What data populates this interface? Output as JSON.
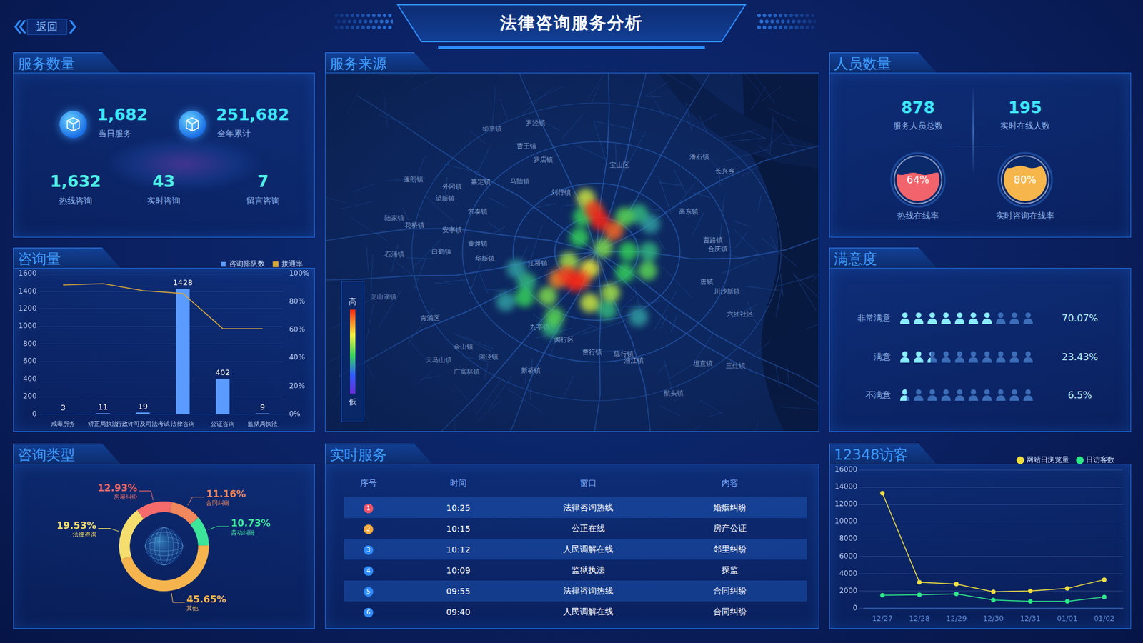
{
  "header": {
    "title": "法律咨询服务分析",
    "back": "返回"
  },
  "service_count": {
    "title": "服务数量",
    "headline": [
      {
        "value": "1,682",
        "label": "当日服务"
      },
      {
        "value": "251,682",
        "label": "全年累计"
      }
    ],
    "breakdown": [
      {
        "value": "1,632",
        "label": "热线咨询"
      },
      {
        "value": "43",
        "label": "实时咨询"
      },
      {
        "value": "7",
        "label": "留言咨询"
      }
    ]
  },
  "personnel": {
    "title": "人员数量",
    "stats": [
      {
        "value": "878",
        "label": "服务人员总数"
      },
      {
        "value": "195",
        "label": "实时在线人数"
      }
    ],
    "ylim": [
      0,
      100
    ],
    "rates": [
      {
        "label": "热线在线率",
        "value": 64,
        "value_label": "64%",
        "color": "#f2646c"
      },
      {
        "label": "实时咨询在线率",
        "value": 80,
        "value_label": "80%",
        "color": "#f6b64c"
      }
    ]
  },
  "satisfaction": {
    "title": "满意度",
    "xlim": [
      0,
      100
    ],
    "rows": [
      {
        "label": "非常满意",
        "value": 70.07,
        "value_label": "70.07%"
      },
      {
        "label": "满意",
        "value": 23.43,
        "value_label": "23.43%"
      },
      {
        "label": "不满意",
        "value": 6.5,
        "value_label": "6.5%"
      }
    ]
  },
  "realtime_service": {
    "title": "实时服务",
    "columns": [
      "序号",
      "时间",
      "窗口",
      "内容"
    ],
    "rows": [
      [
        "1",
        "10:25",
        "法律咨询热线",
        "婚姻纠纷"
      ],
      [
        "2",
        "10:15",
        "公正在线",
        "房产公证"
      ],
      [
        "3",
        "10:12",
        "人民调解在线",
        "邻里纠纷"
      ],
      [
        "4",
        "10:09",
        "监狱执法",
        "探监"
      ],
      [
        "5",
        "09:55",
        "法律咨询热线",
        "合同纠纷"
      ],
      [
        "6",
        "09:40",
        "人民调解在线",
        "合同纠纷"
      ]
    ]
  },
  "chart_data": [
    {
      "type": "bar",
      "title": "咨询量",
      "categories": [
        "戒毒所务",
        "矫正局执法",
        "行政许可及司法考试",
        "法律咨询",
        "公证咨询",
        "监狱局执法"
      ],
      "series": [
        {
          "name": "咨询排队数",
          "type": "bar",
          "color": "#5b9bff",
          "values": [
            3,
            11,
            19,
            1428,
            402,
            9
          ],
          "data_labels": true
        },
        {
          "name": "接通率",
          "type": "line",
          "color": "#d9a93a",
          "axis": "y2",
          "line_style": "solid",
          "values": [
            92,
            93,
            88,
            86,
            61,
            61
          ]
        }
      ],
      "ylim": [
        0,
        1600
      ],
      "yticks": [
        0,
        200,
        400,
        600,
        800,
        1000,
        1200,
        1400,
        1600
      ],
      "y2lim": [
        0,
        100
      ],
      "y2ticks": [
        {
          "value": 0,
          "label": "0%"
        },
        {
          "value": 20,
          "label": "20%"
        },
        {
          "value": 40,
          "label": "40%"
        },
        {
          "value": 60,
          "label": "60%"
        },
        {
          "value": 80,
          "label": "80%"
        },
        {
          "value": 100,
          "label": "100%"
        }
      ],
      "grid": true,
      "legend": "top-right"
    },
    {
      "type": "doughnut",
      "title": "咨询类型",
      "categories": [
        "合同纠纷",
        "劳动纠纷",
        "其他",
        "法律咨询",
        "房屋纠纷"
      ],
      "values": [
        11.16,
        10.73,
        45.65,
        19.53,
        12.93
      ],
      "value_labels": [
        "11.16%",
        "10.73%",
        "45.65%",
        "19.53%",
        "12.93%"
      ],
      "colors": [
        "#f0875d",
        "#3de59a",
        "#f6b44e",
        "#f5de6d",
        "#f46b6b"
      ],
      "data_labels": true
    },
    {
      "type": "line",
      "title": "12348访客",
      "categories": [
        "12/27",
        "12/28",
        "12/29",
        "12/30",
        "12/31",
        "01/01",
        "01/02"
      ],
      "series": [
        {
          "name": "网站日浏览量",
          "color": "#f0e040",
          "marker": "circle",
          "line_style": "solid",
          "values": [
            13300,
            3000,
            2800,
            1900,
            2000,
            2300,
            3300
          ]
        },
        {
          "name": "日访客数",
          "color": "#2ee88a",
          "marker": "circle",
          "line_style": "solid",
          "values": [
            1500,
            1550,
            1650,
            950,
            800,
            800,
            1300
          ]
        }
      ],
      "ylim": [
        0,
        16000
      ],
      "yticks": [
        0,
        2000,
        4000,
        6000,
        8000,
        10000,
        12000,
        14000,
        16000
      ],
      "grid": true,
      "legend": "top-right"
    },
    {
      "type": "heatmap",
      "title": "服务来源",
      "x": [
        66.5,
        38.2,
        36.0,
        64.0,
        64.0,
        66.2,
        40.4,
        45.6,
        57.4,
        52.2,
        51.5,
        61.8,
        61.1,
        40.0,
        61.1,
        65.9,
        46.3,
        56.6,
        44.8,
        58.1,
        49.3,
        52.9,
        53.7,
        53.7,
        47.1,
        58.8,
        52.0,
        54.6,
        49.0,
        55.9,
        50.7
      ],
      "y": [
        41.7,
        54.9,
        64.6,
        69.1,
        38.6,
        49.8,
        58.9,
        72.2,
        67.1,
        39.6,
        45.7,
        49.8,
        56.1,
        63.4,
        39.6,
        55.5,
        69.1,
        48.8,
        63.0,
        62.0,
        52.8,
        34.1,
        65.0,
        54.9,
        57.9,
        43.7,
        58.0,
        37.6,
        57.0,
        40.7,
        58.9
      ],
      "values": [
        0.35,
        0.35,
        0.35,
        0.35,
        0.4,
        0.4,
        0.4,
        0.4,
        0.4,
        0.45,
        0.45,
        0.45,
        0.45,
        0.45,
        0.5,
        0.5,
        0.5,
        0.55,
        0.55,
        0.6,
        0.6,
        0.65,
        0.65,
        0.7,
        0.85,
        0.9,
        0.9,
        0.95,
        0.95,
        1,
        1
      ],
      "xlim": [
        0,
        100
      ],
      "ylim": [
        0,
        100
      ],
      "tick_labels": false,
      "colorbar": {
        "range": [
          0,
          1
        ],
        "ticks": [
          {
            "value": 1,
            "label": "高"
          },
          {
            "value": 0,
            "label": "低"
          }
        ]
      },
      "place_names": [
        "华亭镇",
        "罗泾镇",
        "曹王镇",
        "罗店镇",
        "嘉定镇",
        "马陆镇",
        "外冈镇",
        "望新镇",
        "蓬朗镇",
        "刘行镇",
        "宝山区",
        "方泰镇",
        "陆家镇",
        "花桥镇",
        "安亭镇",
        "黄渡镇",
        "白鹤镇",
        "石浦镇",
        "华新镇",
        "江桥镇",
        "淀山湖镇",
        "青浦区",
        "佘山镇",
        "洞泾镇",
        "天马山镇",
        "广富林镇",
        "新桥镇",
        "九亭镇",
        "闵行区",
        "曹行镇",
        "陈行镇",
        "浦江镇",
        "航头镇",
        "坦直镇",
        "三灶镇",
        "高东镇",
        "曹路镇",
        "合庆镇",
        "唐镇",
        "川沙新镇",
        "六团社区",
        "潘石镇",
        "长兴乡"
      ]
    }
  ]
}
